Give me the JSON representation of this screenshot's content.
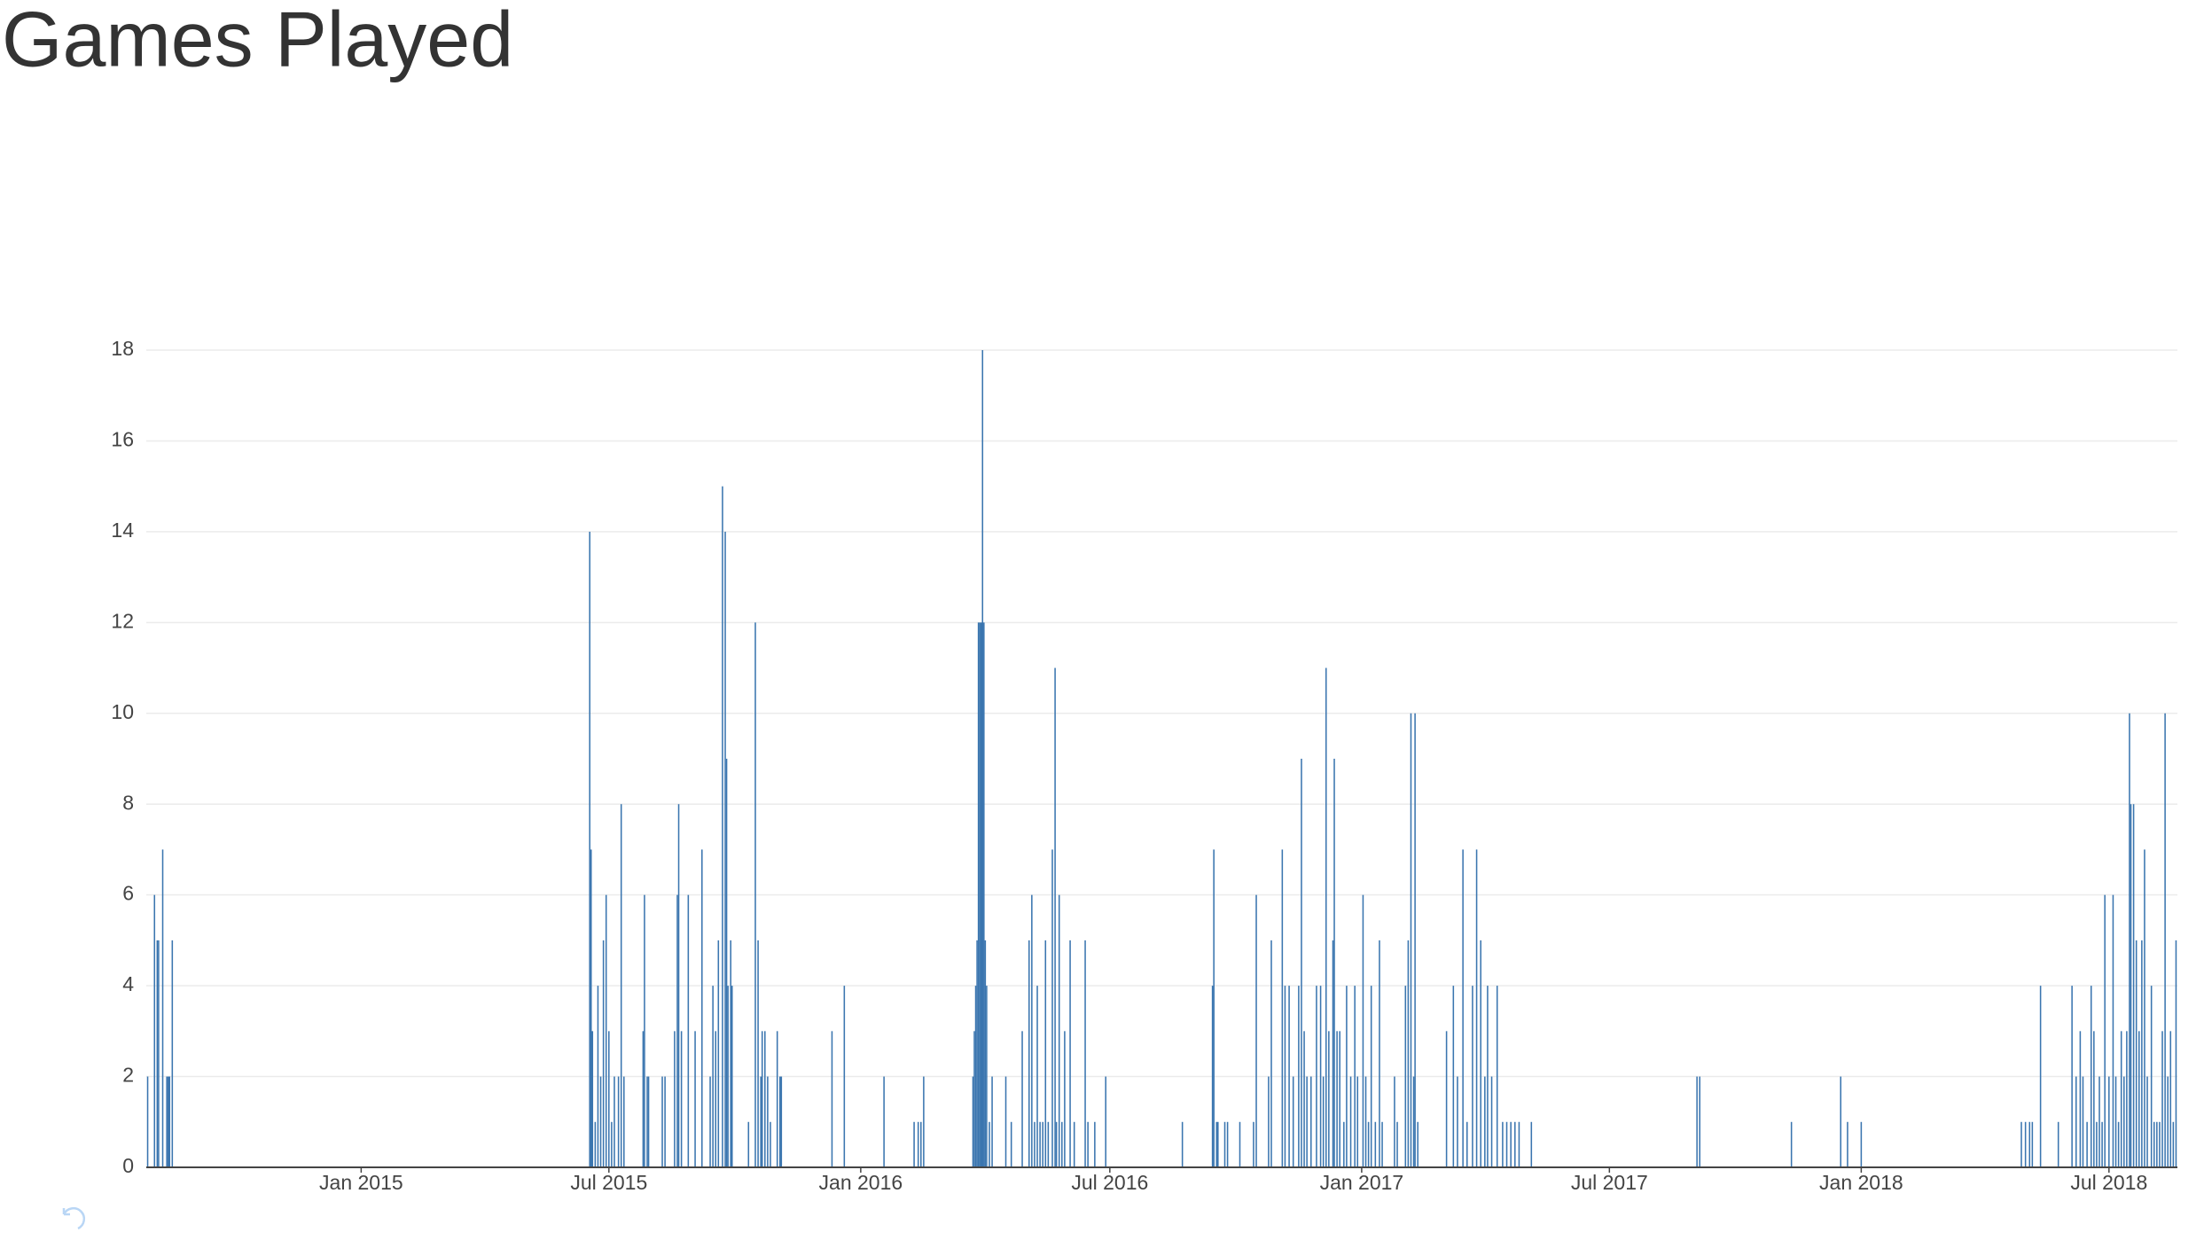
{
  "chart_data": {
    "type": "bar",
    "title": "Games Played",
    "color": "#3a75af",
    "grid": true,
    "xlim": [
      "2014-07-28",
      "2018-08-20"
    ],
    "xticks": [
      {
        "value": "2015-01-01",
        "label": "Jan 2015"
      },
      {
        "value": "2015-07-01",
        "label": "Jul 2015"
      },
      {
        "value": "2016-01-01",
        "label": "Jan 2016"
      },
      {
        "value": "2016-07-01",
        "label": "Jul 2016"
      },
      {
        "value": "2017-01-01",
        "label": "Jan 2017"
      },
      {
        "value": "2017-07-01",
        "label": "Jul 2017"
      },
      {
        "value": "2018-01-01",
        "label": "Jan 2018"
      },
      {
        "value": "2018-07-01",
        "label": "Jul 2018"
      }
    ],
    "ylim": [
      0,
      18
    ],
    "yticks": [
      0,
      2,
      4,
      6,
      8,
      10,
      12,
      14,
      16,
      18
    ],
    "x": [
      "2014-07-29",
      "2014-08-03",
      "2014-08-05",
      "2014-08-06",
      "2014-08-09",
      "2014-08-12",
      "2014-08-13",
      "2014-08-14",
      "2014-08-16",
      "2015-06-17",
      "2015-06-18",
      "2015-06-19",
      "2015-06-21",
      "2015-06-23",
      "2015-06-25",
      "2015-06-27",
      "2015-06-29",
      "2015-07-01",
      "2015-07-03",
      "2015-07-05",
      "2015-07-08",
      "2015-07-10",
      "2015-07-12",
      "2015-07-26",
      "2015-07-27",
      "2015-07-29",
      "2015-07-30",
      "2015-08-09",
      "2015-08-11",
      "2015-08-18",
      "2015-08-20",
      "2015-08-21",
      "2015-08-23",
      "2015-08-28",
      "2015-09-02",
      "2015-09-07",
      "2015-09-13",
      "2015-09-15",
      "2015-09-17",
      "2015-09-19",
      "2015-09-22",
      "2015-09-24",
      "2015-09-25",
      "2015-09-26",
      "2015-09-28",
      "2015-09-29",
      "2015-10-11",
      "2015-10-16",
      "2015-10-18",
      "2015-10-20",
      "2015-10-21",
      "2015-10-23",
      "2015-10-25",
      "2015-10-27",
      "2015-11-01",
      "2015-11-03",
      "2015-11-04",
      "2015-12-11",
      "2015-12-20",
      "2016-01-18",
      "2016-02-09",
      "2016-02-12",
      "2016-02-14",
      "2016-02-16",
      "2016-03-23",
      "2016-03-24",
      "2016-03-25",
      "2016-03-26",
      "2016-03-27",
      "2016-03-28",
      "2016-03-29",
      "2016-03-30",
      "2016-03-31",
      "2016-04-01",
      "2016-04-02",
      "2016-04-04",
      "2016-04-06",
      "2016-04-16",
      "2016-04-20",
      "2016-04-28",
      "2016-05-03",
      "2016-05-05",
      "2016-05-07",
      "2016-05-09",
      "2016-05-11",
      "2016-05-13",
      "2016-05-15",
      "2016-05-17",
      "2016-05-20",
      "2016-05-22",
      "2016-05-23",
      "2016-05-25",
      "2016-05-27",
      "2016-05-29",
      "2016-06-02",
      "2016-06-05",
      "2016-06-13",
      "2016-06-15",
      "2016-06-20",
      "2016-06-28",
      "2016-08-23",
      "2016-09-14",
      "2016-09-15",
      "2016-09-17",
      "2016-09-18",
      "2016-09-23",
      "2016-09-25",
      "2016-10-04",
      "2016-10-14",
      "2016-10-16",
      "2016-10-25",
      "2016-10-27",
      "2016-11-04",
      "2016-11-06",
      "2016-11-09",
      "2016-11-12",
      "2016-11-16",
      "2016-11-18",
      "2016-11-20",
      "2016-11-22",
      "2016-11-25",
      "2016-11-29",
      "2016-12-02",
      "2016-12-04",
      "2016-12-06",
      "2016-12-08",
      "2016-12-11",
      "2016-12-12",
      "2016-12-14",
      "2016-12-16",
      "2016-12-19",
      "2016-12-21",
      "2016-12-24",
      "2016-12-27",
      "2016-12-29",
      "2017-01-02",
      "2017-01-04",
      "2017-01-06",
      "2017-01-08",
      "2017-01-11",
      "2017-01-14",
      "2017-01-16",
      "2017-01-25",
      "2017-01-27",
      "2017-02-02",
      "2017-02-04",
      "2017-02-06",
      "2017-02-08",
      "2017-02-09",
      "2017-02-11",
      "2017-03-04",
      "2017-03-09",
      "2017-03-12",
      "2017-03-16",
      "2017-03-19",
      "2017-03-23",
      "2017-03-26",
      "2017-03-29",
      "2017-04-01",
      "2017-04-03",
      "2017-04-06",
      "2017-04-10",
      "2017-04-14",
      "2017-04-17",
      "2017-04-20",
      "2017-04-23",
      "2017-04-26",
      "2017-05-05",
      "2017-09-03",
      "2017-09-05",
      "2017-11-11",
      "2017-12-17",
      "2017-12-22",
      "2018-01-01",
      "2018-04-28",
      "2018-05-01",
      "2018-05-04",
      "2018-05-06",
      "2018-05-12",
      "2018-05-25",
      "2018-06-04",
      "2018-06-07",
      "2018-06-10",
      "2018-06-12",
      "2018-06-15",
      "2018-06-18",
      "2018-06-20",
      "2018-06-22",
      "2018-06-24",
      "2018-06-26",
      "2018-06-28",
      "2018-07-01",
      "2018-07-04",
      "2018-07-06",
      "2018-07-08",
      "2018-07-10",
      "2018-07-12",
      "2018-07-14",
      "2018-07-16",
      "2018-07-17",
      "2018-07-19",
      "2018-07-21",
      "2018-07-23",
      "2018-07-25",
      "2018-07-27",
      "2018-07-29",
      "2018-08-01",
      "2018-08-03",
      "2018-08-05",
      "2018-08-07",
      "2018-08-09",
      "2018-08-11",
      "2018-08-13",
      "2018-08-15",
      "2018-08-17",
      "2018-08-19"
    ],
    "values": [
      2,
      6,
      5,
      5,
      7,
      2,
      2,
      2,
      5,
      14,
      7,
      3,
      1,
      4,
      2,
      5,
      6,
      3,
      1,
      2,
      2,
      8,
      2,
      3,
      6,
      2,
      2,
      2,
      2,
      3,
      6,
      8,
      3,
      6,
      3,
      7,
      2,
      4,
      3,
      5,
      15,
      14,
      9,
      4,
      5,
      4,
      1,
      12,
      5,
      2,
      3,
      3,
      2,
      1,
      3,
      2,
      2,
      3,
      4,
      2,
      1,
      1,
      1,
      2,
      2,
      3,
      4,
      5,
      12,
      12,
      12,
      18,
      12,
      5,
      4,
      1,
      2,
      2,
      1,
      3,
      5,
      6,
      1,
      4,
      1,
      1,
      5,
      1,
      7,
      11,
      1,
      6,
      1,
      3,
      5,
      1,
      5,
      1,
      1,
      2,
      1,
      4,
      7,
      1,
      1,
      1,
      1,
      1,
      1,
      6,
      2,
      5,
      7,
      4,
      4,
      2,
      4,
      9,
      3,
      2,
      2,
      4,
      4,
      2,
      11,
      3,
      5,
      9,
      3,
      3,
      1,
      4,
      2,
      4,
      2,
      6,
      2,
      1,
      4,
      1,
      5,
      1,
      2,
      1,
      4,
      5,
      10,
      2,
      10,
      1,
      3,
      4,
      2,
      7,
      1,
      4,
      7,
      5,
      2,
      4,
      2,
      4,
      1,
      1,
      1,
      1,
      1,
      1,
      2,
      2,
      1,
      2,
      1,
      1,
      1,
      1,
      1,
      1,
      4,
      1,
      4,
      2,
      3,
      2,
      1,
      4,
      3,
      1,
      2,
      1,
      6,
      2,
      6,
      2,
      1,
      3,
      2,
      3,
      10,
      8,
      8,
      5,
      3,
      5,
      7,
      2,
      4,
      1,
      1,
      1,
      3,
      10,
      2,
      3,
      1,
      5
    ]
  }
}
